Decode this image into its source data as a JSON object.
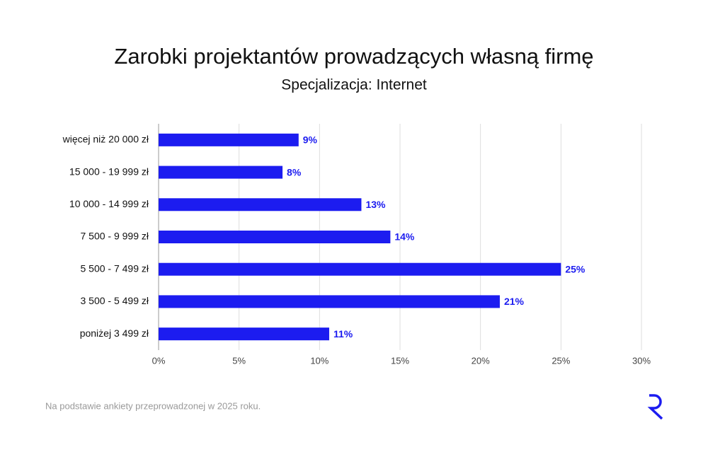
{
  "chart_data": {
    "type": "hbar",
    "title": "Zarobki projektantów prowadzących własną firmę",
    "subtitle": "Specjalizacja: Internet",
    "categories": [
      "więcej niż 20 000 zł",
      "15 000 - 19 999 zł",
      "10 000 - 14 999 zł",
      "7 500 - 9 999 zł",
      "5 500 - 7 499 zł",
      "3 500 - 5 499 zł",
      "poniżej 3 499 zł"
    ],
    "values": [
      8.7,
      7.7,
      12.6,
      14.4,
      25.0,
      21.2,
      10.6
    ],
    "value_labels": [
      "9%",
      "8%",
      "13%",
      "14%",
      "25%",
      "21%",
      "11%"
    ],
    "color": "#1c1cf0",
    "xlim": [
      0,
      30
    ],
    "xticks": [
      {
        "value": 0,
        "label": "0%"
      },
      {
        "value": 5,
        "label": "5%"
      },
      {
        "value": 10,
        "label": "10%"
      },
      {
        "value": 15,
        "label": "15%"
      },
      {
        "value": 20,
        "label": "20%"
      },
      {
        "value": 25,
        "label": "25%"
      },
      {
        "value": 30,
        "label": "30%"
      }
    ],
    "grid": true,
    "note": "Na podstawie ankiety przeprowadzonej w 2025 roku."
  }
}
